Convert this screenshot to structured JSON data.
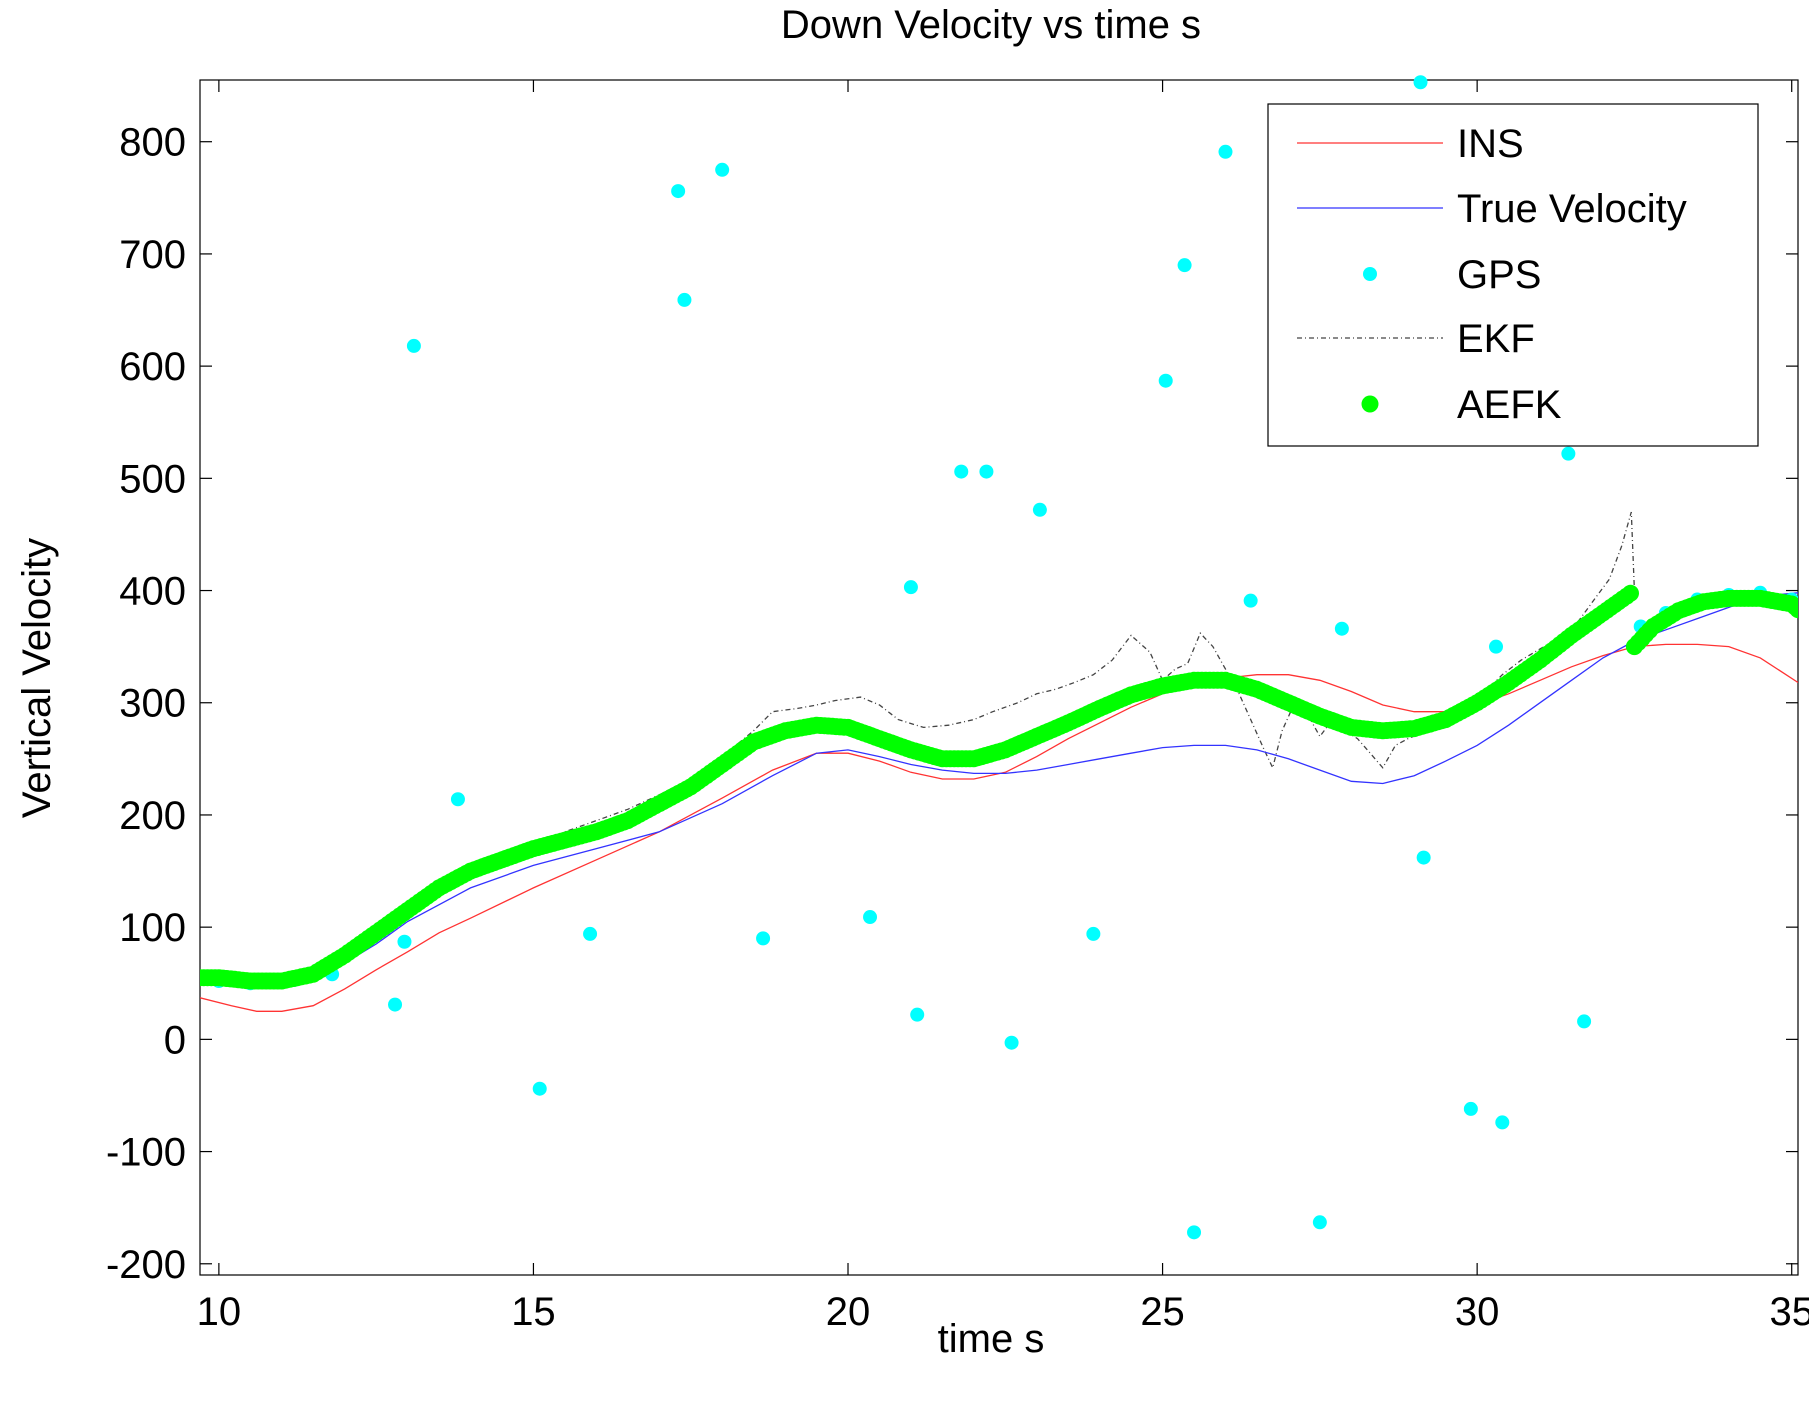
{
  "chart_data": {
    "type": "line",
    "title": "Down Velocity vs time s",
    "xlabel": "time s",
    "ylabel": "Vertical Velocity",
    "xlim": [
      9.7,
      35.1
    ],
    "ylim": [
      -210,
      855
    ],
    "xticks": [
      10,
      15,
      20,
      25,
      30,
      35
    ],
    "yticks": [
      -200,
      -100,
      0,
      100,
      200,
      300,
      400,
      500,
      600,
      700,
      800
    ],
    "grid": false,
    "legend_position": "top-right",
    "colors": {
      "INS": "#ff3333",
      "True Velocity": "#3333ff",
      "GPS": "#00ffff",
      "EKF": "#444444",
      "AEFK": "#00ff00"
    },
    "series": [
      {
        "name": "INS",
        "style": "line",
        "x": [
          9.7,
          10.2,
          10.6,
          11.0,
          11.5,
          12.0,
          12.5,
          13.0,
          13.5,
          14.0,
          15.0,
          16.0,
          17.0,
          18.0,
          18.8,
          19.5,
          20.0,
          20.5,
          21.0,
          21.5,
          22.0,
          22.5,
          23.0,
          23.5,
          24.0,
          24.5,
          25.0,
          25.5,
          26.0,
          26.5,
          27.0,
          27.5,
          28.0,
          28.5,
          29.0,
          29.5,
          30.0,
          30.5,
          31.0,
          31.5,
          32.0,
          32.5,
          33.0,
          33.5,
          34.0,
          34.5,
          35.1
        ],
        "y": [
          37,
          30,
          25,
          25,
          30,
          45,
          62,
          78,
          95,
          108,
          135,
          160,
          185,
          215,
          240,
          255,
          255,
          248,
          238,
          232,
          232,
          238,
          252,
          268,
          282,
          296,
          308,
          318,
          322,
          325,
          325,
          320,
          310,
          298,
          292,
          292,
          298,
          308,
          320,
          332,
          342,
          350,
          352,
          352,
          350,
          340,
          318
        ]
      },
      {
        "name": "True Velocity",
        "style": "line",
        "x": [
          9.7,
          10.0,
          10.5,
          11.0,
          11.5,
          12.0,
          12.5,
          13.0,
          14.0,
          15.0,
          16.0,
          17.0,
          18.0,
          18.8,
          19.5,
          20.0,
          20.5,
          21.0,
          21.5,
          22.0,
          22.5,
          23.0,
          23.5,
          24.0,
          24.5,
          25.0,
          25.5,
          26.0,
          26.5,
          27.0,
          27.5,
          28.0,
          28.5,
          29.0,
          29.5,
          30.0,
          30.5,
          31.0,
          31.5,
          32.0,
          32.5,
          33.0,
          33.5,
          34.0,
          34.5,
          35.1
        ],
        "y": [
          55,
          52,
          50,
          50,
          55,
          68,
          85,
          105,
          135,
          155,
          170,
          185,
          210,
          235,
          255,
          258,
          252,
          245,
          240,
          237,
          237,
          240,
          245,
          250,
          255,
          260,
          262,
          262,
          258,
          250,
          240,
          230,
          228,
          235,
          248,
          262,
          280,
          300,
          320,
          340,
          355,
          365,
          375,
          385,
          395,
          398
        ]
      },
      {
        "name": "GPS",
        "style": "markers",
        "x": [
          10.0,
          10.5,
          11.2,
          11.8,
          12.8,
          12.95,
          13.1,
          13.8,
          15.1,
          15.9,
          17.3,
          17.4,
          18.0,
          18.65,
          20.35,
          21.0,
          21.1,
          21.8,
          22.2,
          22.6,
          23.05,
          23.9,
          25.05,
          25.35,
          25.5,
          26.0,
          26.4,
          27.5,
          27.85,
          29.1,
          29.15,
          29.9,
          30.3,
          30.4,
          31.45,
          31.7,
          32.6,
          33.0,
          33.5,
          34.0,
          34.5,
          35.0
        ],
        "y": [
          52,
          50,
          53,
          58,
          31,
          87,
          618,
          214,
          -44,
          94,
          756,
          659,
          775,
          90,
          109,
          403,
          22,
          506,
          506,
          -3,
          472,
          94,
          587,
          690,
          -172,
          791,
          391,
          -163,
          366,
          853,
          162,
          -62,
          350,
          -74,
          522,
          16,
          368,
          380,
          392,
          396,
          398,
          392
        ]
      },
      {
        "name": "EKF",
        "style": "dashdot",
        "x": [
          9.7,
          10.5,
          11.0,
          11.5,
          12.0,
          12.5,
          13.0,
          13.5,
          14.0,
          14.5,
          15.0,
          15.5,
          16.0,
          16.5,
          17.0,
          17.5,
          18.0,
          18.5,
          18.8,
          19.2,
          19.5,
          19.8,
          20.2,
          20.5,
          20.8,
          21.2,
          21.6,
          22.0,
          22.3,
          22.7,
          23.0,
          23.3,
          23.6,
          23.9,
          24.2,
          24.5,
          24.8,
          25.0,
          25.2,
          25.4,
          25.6,
          25.8,
          26.0,
          26.2,
          26.4,
          26.6,
          26.75,
          26.9,
          27.1,
          27.3,
          27.5,
          27.7,
          27.9,
          28.1,
          28.3,
          28.5,
          28.7,
          28.9,
          29.2,
          29.5,
          29.8,
          30.1,
          30.4,
          30.7,
          31.0,
          31.3,
          31.6,
          31.9,
          32.1,
          32.3,
          32.45,
          32.5
        ],
        "y": [
          55,
          52,
          52,
          60,
          75,
          95,
          115,
          135,
          150,
          162,
          172,
          185,
          195,
          205,
          218,
          232,
          252,
          275,
          292,
          295,
          298,
          302,
          305,
          298,
          285,
          278,
          280,
          285,
          292,
          300,
          308,
          312,
          318,
          325,
          338,
          360,
          345,
          320,
          330,
          335,
          362,
          350,
          330,
          310,
          285,
          260,
          242,
          275,
          300,
          290,
          270,
          285,
          275,
          268,
          255,
          242,
          262,
          268,
          275,
          285,
          295,
          308,
          325,
          338,
          348,
          358,
          372,
          395,
          410,
          440,
          470,
          400
        ]
      },
      {
        "name": "AEFK",
        "style": "thick-markers",
        "x": [
          9.7,
          10.0,
          10.5,
          11.0,
          11.5,
          12.0,
          12.5,
          13.0,
          13.5,
          14.0,
          15.0,
          16.0,
          16.5,
          17.0,
          17.5,
          18.0,
          18.5,
          19.0,
          19.5,
          20.0,
          20.5,
          21.0,
          21.5,
          22.0,
          22.5,
          23.0,
          23.5,
          24.0,
          24.5,
          25.0,
          25.5,
          26.0,
          26.5,
          27.0,
          27.5,
          28.0,
          28.5,
          29.0,
          29.5,
          30.0,
          30.5,
          31.0,
          31.5,
          32.0,
          32.5,
          32.5,
          32.8,
          33.2,
          33.6,
          34.0,
          34.5,
          35.0,
          35.1
        ],
        "y": [
          55,
          55,
          52,
          52,
          58,
          75,
          95,
          115,
          135,
          150,
          170,
          185,
          195,
          210,
          225,
          245,
          265,
          275,
          280,
          278,
          268,
          258,
          250,
          250,
          258,
          270,
          282,
          295,
          307,
          315,
          320,
          320,
          312,
          300,
          288,
          278,
          275,
          277,
          285,
          300,
          318,
          338,
          360,
          380,
          400,
          350,
          368,
          382,
          390,
          393,
          393,
          388,
          383
        ]
      }
    ]
  }
}
